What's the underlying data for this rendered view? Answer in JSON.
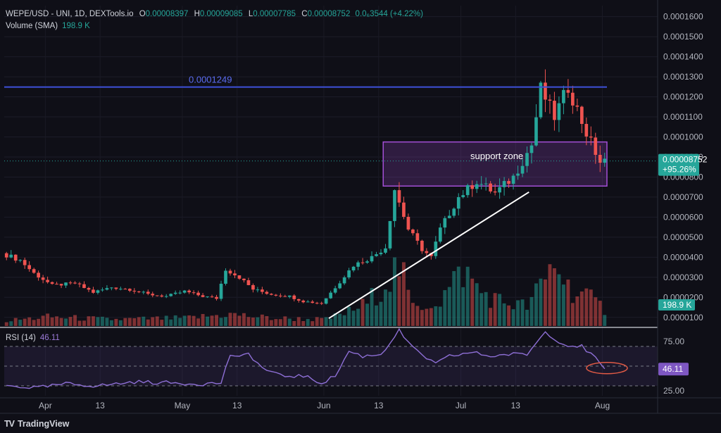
{
  "header": {
    "symbol": "WEPE/USD - UNI, 1D, DEXTools.io",
    "o_label": "O",
    "o_value": "0.00008397",
    "h_label": "H",
    "h_value": "0.00009085",
    "l_label": "L",
    "l_value": "0.00007785",
    "c_label": "C",
    "c_value": "0.00008752",
    "change": "0.0₆3544 (+4.22%)",
    "volume_label": "Volume (SMA)",
    "volume_value": "198.9 K"
  },
  "rsi_panel": {
    "label": "RSI (14)",
    "value": "46.11"
  },
  "branding": {
    "logo": "TV",
    "name": "TradingView"
  },
  "colors": {
    "background": "#0f0f17",
    "up": "#26a69a",
    "down": "#ef5350",
    "resistance": "#3d50d9",
    "zone": "#a34fd6",
    "rsi": "#8e6fd6",
    "annotation": "#e05a45"
  },
  "chart_data": [
    {
      "type": "candlestick",
      "title": "WEPE/USD - UNI, 1D, DEXTools.io",
      "x_ticks": [
        "Apr",
        "13",
        "May",
        "13",
        "Jun",
        "13",
        "Jul",
        "13",
        "Aug"
      ],
      "y_ticks": [
        "0.0001600",
        "0.0001500",
        "0.0001400",
        "0.0001300",
        "0.0001200",
        "0.0001100",
        "0.0001000",
        "0.0000900",
        "0.0000800",
        "0.0000700",
        "0.0000600",
        "0.0000500",
        "0.0000400",
        "0.0000300",
        "0.0000200",
        "0.0000100"
      ],
      "ylim": [
        5e-06,
        0.0001655
      ],
      "date_range": [
        "2024-03-23",
        "2024-08-02"
      ],
      "price_pts": [
        [
          "03-23",
          4.2e-05
        ],
        [
          "03-27",
          3.85e-05
        ],
        [
          "03-30",
          3.2e-05
        ],
        [
          "04-03",
          2.6e-05
        ],
        [
          "04-08",
          2.7e-05
        ],
        [
          "04-12",
          2.25e-05
        ],
        [
          "04-16",
          2.5e-05
        ],
        [
          "04-20",
          2.4e-05
        ],
        [
          "04-24",
          2.15e-05
        ],
        [
          "04-28",
          2.05e-05
        ],
        [
          "05-02",
          2.3e-05
        ],
        [
          "05-06",
          2.05e-05
        ],
        [
          "05-09",
          1.95e-05
        ],
        [
          "05-11",
          3.4e-05
        ],
        [
          "05-14",
          3e-05
        ],
        [
          "05-17",
          2.4e-05
        ],
        [
          "05-21",
          2.15e-05
        ],
        [
          "05-25",
          2.05e-05
        ],
        [
          "05-28",
          1.8e-05
        ],
        [
          "06-01",
          1.7e-05
        ],
        [
          "06-04",
          2.5e-05
        ],
        [
          "06-08",
          3.6e-05
        ],
        [
          "06-12",
          4e-05
        ],
        [
          "06-15",
          4.5e-05
        ],
        [
          "06-17",
          7.4e-05
        ],
        [
          "06-20",
          5.4e-05
        ],
        [
          "06-23",
          4.4e-05
        ],
        [
          "06-25",
          4e-05
        ],
        [
          "06-27",
          5.4e-05
        ],
        [
          "07-01",
          7e-05
        ],
        [
          "07-05",
          7.8e-05
        ],
        [
          "07-09",
          7.2e-05
        ],
        [
          "07-13",
          8e-05
        ],
        [
          "07-17",
          9.6e-05
        ],
        [
          "07-19",
          0.000124
        ],
        [
          "07-22",
          0.00011
        ],
        [
          "07-25",
          0.000125
        ],
        [
          "07-29",
          0.000102
        ],
        [
          "08-01",
          8.75e-05
        ]
      ],
      "volume_pts": [
        [
          "03-23",
          8
        ],
        [
          "04-01",
          14
        ],
        [
          "04-15",
          10
        ],
        [
          "05-01",
          12
        ],
        [
          "05-11",
          18
        ],
        [
          "05-20",
          12
        ],
        [
          "06-01",
          10
        ],
        [
          "06-06",
          22
        ],
        [
          "06-10",
          35
        ],
        [
          "06-17",
          92
        ],
        [
          "06-20",
          28
        ],
        [
          "06-26",
          40
        ],
        [
          "07-01",
          85
        ],
        [
          "07-05",
          52
        ],
        [
          "07-09",
          38
        ],
        [
          "07-15",
          30
        ],
        [
          "07-19",
          70
        ],
        [
          "07-21",
          100
        ],
        [
          "07-24",
          60
        ],
        [
          "07-28",
          45
        ],
        [
          "08-01",
          26
        ]
      ],
      "annotations": {
        "resistance_value": 0.0001249,
        "resistance_label": "0.0001249",
        "zone_label": "support zone",
        "zone_range": [
          7.55e-05,
          9.75e-05
        ],
        "zone_dates": [
          "06-14",
          "08-02"
        ],
        "trendline": [
          [
            "06-01",
            9.5e-06
          ],
          [
            "07-15",
            7.25e-05
          ]
        ]
      },
      "last_price": "0.00008752",
      "last_change": "+95.26%",
      "volume_badge": "198.9 K"
    },
    {
      "type": "line",
      "title": "RSI (14)",
      "y_ticks": [
        "75.00",
        "25.00"
      ],
      "ylim": [
        20,
        80
      ],
      "bands": [
        30,
        50,
        70
      ],
      "rsi_pts": [
        [
          "03-23",
          30
        ],
        [
          "03-30",
          28
        ],
        [
          "04-05",
          32
        ],
        [
          "04-12",
          30
        ],
        [
          "04-20",
          34
        ],
        [
          "04-28",
          33
        ],
        [
          "05-05",
          32
        ],
        [
          "05-09",
          33
        ],
        [
          "05-11",
          62
        ],
        [
          "05-13",
          58
        ],
        [
          "05-15",
          63
        ],
        [
          "05-18",
          48
        ],
        [
          "05-22",
          40
        ],
        [
          "05-27",
          40
        ],
        [
          "05-31",
          33
        ],
        [
          "06-03",
          40
        ],
        [
          "06-06",
          65
        ],
        [
          "06-09",
          60
        ],
        [
          "06-13",
          62
        ],
        [
          "06-17",
          86
        ],
        [
          "06-20",
          68
        ],
        [
          "06-25",
          52
        ],
        [
          "06-28",
          60
        ],
        [
          "07-03",
          64
        ],
        [
          "07-07",
          60
        ],
        [
          "07-11",
          62
        ],
        [
          "07-15",
          62
        ],
        [
          "07-19",
          85
        ],
        [
          "07-23",
          72
        ],
        [
          "07-27",
          70
        ],
        [
          "07-30",
          58
        ],
        [
          "08-01",
          46
        ]
      ],
      "last_value": "46.11"
    }
  ]
}
